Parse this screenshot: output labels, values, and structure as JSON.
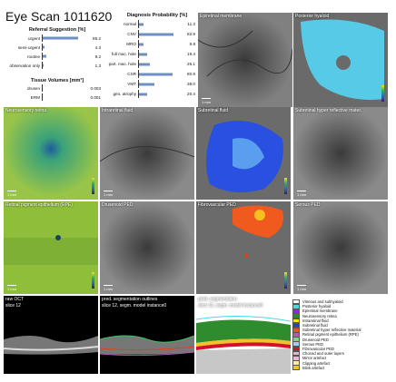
{
  "title": "Eye Scan 1011620",
  "referral": {
    "title": "Referral Suggestion [%]",
    "items": [
      {
        "label": "urgent",
        "value": "85.2",
        "frac": 0.852
      },
      {
        "label": "semi-urgent",
        "value": "4.3",
        "frac": 0.043
      },
      {
        "label": "routine",
        "value": "9.2",
        "frac": 0.092
      },
      {
        "label": "observation only",
        "value": "1.3",
        "frac": 0.013
      }
    ]
  },
  "tissue": {
    "title": "Tissue Volumes [mm³]",
    "items": [
      {
        "label": "drusen",
        "value": "0.003"
      },
      {
        "label": "ERM",
        "value": "0.001"
      }
    ]
  },
  "diagnosis": {
    "title": "Diagnosis Probability [%]",
    "items": [
      {
        "label": "normal",
        "value": "11.3",
        "frac": 0.113
      },
      {
        "label": "CNV",
        "value": "82.9",
        "frac": 0.829
      },
      {
        "label": "MRO",
        "value": "9.8",
        "frac": 0.098
      },
      {
        "label": "full mac. hole",
        "value": "19.4",
        "frac": 0.194
      },
      {
        "label": "part. mac. hole",
        "value": "26.1",
        "frac": 0.261
      },
      {
        "label": "CSR",
        "value": "80.9",
        "frac": 0.809
      },
      {
        "label": "VMT",
        "value": "38.0",
        "frac": 0.38
      },
      {
        "label": "geo. atrophy",
        "value": "20.4",
        "frac": 0.204
      }
    ]
  },
  "tiles": {
    "epiretinal": "Epiretinal membrane",
    "hyaloid": "Posterior hyaloid",
    "neurosensory": "Neurosensory retina",
    "intraretinal": "Intraretinal fluid",
    "subretinal": "Subretinal fluid",
    "hyperreflective": "Subretinal hyper reflective mater.",
    "rpe": "Retinal pigment epithelium (RPE)",
    "drusenoid": "Drusenoid PED",
    "fibrovascular": "Fibrovascular PED",
    "serous": "Serous PED",
    "raw1": "raw OCT",
    "raw2": "slice 12",
    "pred1": "pred. segmentation outlines",
    "pred2": "slice 12, segm. model instance0",
    "seg1": "pred. segmentation",
    "seg2": "slice 12, segm. model instance0",
    "scale": "1 mm"
  },
  "legend": [
    {
      "label": "Vitreous and subhyaloid",
      "color": "#ffffff"
    },
    {
      "label": "Posterior hyaloid",
      "color": "#4fd3f0"
    },
    {
      "label": "Epiretinal membrane",
      "color": "#8a2be2"
    },
    {
      "label": "Neurosensory retina",
      "color": "#2e8b2e"
    },
    {
      "label": "Intraretinal fluid",
      "color": "#f5e600"
    },
    {
      "label": "Subretinal fluid",
      "color": "#1f3fd0"
    },
    {
      "label": "Subretinal hyper reflective material",
      "color": "#e2571f"
    },
    {
      "label": "Retinal pigment epithelium (RPE)",
      "color": "#b05ab0"
    },
    {
      "label": "Drusenoid PED",
      "color": "#7cd67c"
    },
    {
      "label": "Serous PED",
      "color": "#9ad0f0"
    },
    {
      "label": "Fibrovascular PED",
      "color": "#d3122a"
    },
    {
      "label": "Choroid and outer layers",
      "color": "#c7c7c7"
    },
    {
      "label": "Mirror artefact",
      "color": "#f0b6d9"
    },
    {
      "label": "Clipping artefact",
      "color": "#f5f0a0"
    },
    {
      "label": "Blink artefact",
      "color": "#f2c12e"
    }
  ]
}
